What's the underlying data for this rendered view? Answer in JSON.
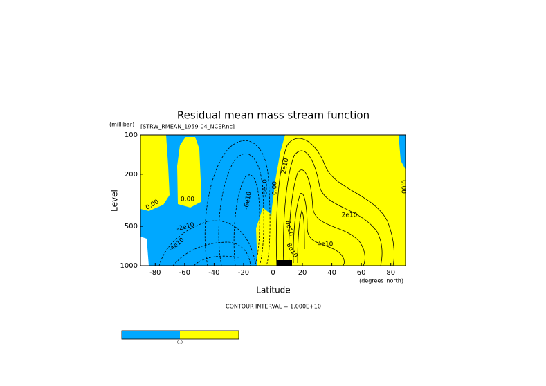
{
  "chart_data": {
    "type": "contour",
    "title": "Residual mean mass stream function",
    "subtitle": "[STRW_RMEAN_1959-04_NCEP.nc]",
    "y_unit": "(millibar)",
    "x_label": "Latitude",
    "x_unit": "(degrees_north)",
    "y_label": "Level",
    "footnote": "CONTOUR INTERVAL = 1.000E+10",
    "xlim": [
      -90,
      90
    ],
    "xticks": [
      -80,
      -60,
      -40,
      -20,
      0,
      20,
      40,
      60,
      80
    ],
    "ylim": [
      100,
      1000
    ],
    "yticks": [
      100,
      200,
      500,
      1000
    ],
    "log_y": true,
    "y_reversed": true,
    "colors": {
      "negative": "#00a8ff",
      "positive": "#ffff00"
    },
    "colorbar_labels": [
      "0.0"
    ],
    "contour_labels": [
      "0.00",
      "0.00",
      "-2e10",
      "-4e10",
      "-6e10",
      "-8e10",
      "0.00",
      "2e10",
      "2e10",
      "6e10",
      "8e10",
      "4e10",
      "0.00"
    ]
  }
}
